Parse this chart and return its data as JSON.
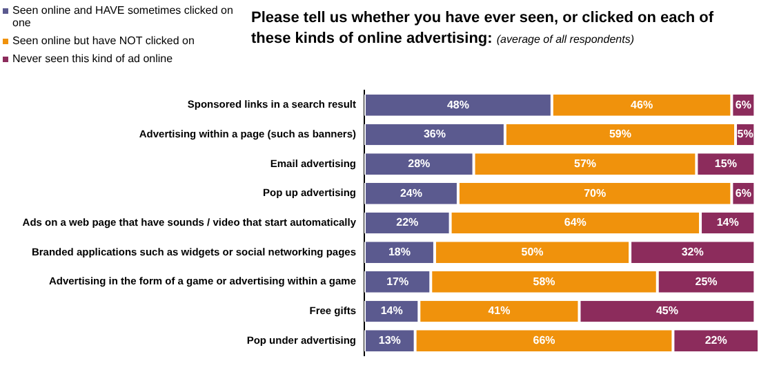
{
  "chart_data": {
    "type": "bar",
    "orientation": "horizontal",
    "stacked": true,
    "title": "Please tell us whether you have ever seen, or clicked on each of these kinds of online advertising:",
    "subtitle": "(average of all respondents)",
    "categories": [
      "Sponsored links in a search result",
      "Advertising within a page (such as banners)",
      "Email advertising",
      "Pop up advertising",
      "Ads on a web page that have sounds / video that start automatically",
      "Branded applications such as widgets or social networking pages",
      "Advertising in the form of a game or advertising within a game",
      "Free gifts",
      "Pop under advertising"
    ],
    "series": [
      {
        "name": "Seen online and HAVE sometimes clicked on one",
        "color": "#5b5a8f",
        "values": [
          48,
          36,
          28,
          24,
          22,
          18,
          17,
          14,
          13
        ],
        "value_labels": [
          "48%",
          "36%",
          "28%",
          "24%",
          "22%",
          "18%",
          "17%",
          "14%",
          "13%"
        ]
      },
      {
        "name": "Seen online but have NOT clicked on",
        "color": "#f0920c",
        "values": [
          46,
          59,
          57,
          70,
          64,
          50,
          58,
          41,
          66
        ],
        "value_labels": [
          "46%",
          "59%",
          "57%",
          "70%",
          "64%",
          "50%",
          "58%",
          "41%",
          "66%"
        ]
      },
      {
        "name": "Never seen this kind of ad online",
        "color": "#8c2c5c",
        "values": [
          6,
          5,
          15,
          6,
          14,
          32,
          25,
          45,
          22
        ],
        "value_labels": [
          "6%",
          "5%",
          "15%",
          "6%",
          "14%",
          "32%",
          "25%",
          "45%",
          "22%"
        ]
      }
    ],
    "xlim": [
      0,
      101
    ],
    "tick_labels": "y",
    "legend": "top left",
    "grid": false
  }
}
